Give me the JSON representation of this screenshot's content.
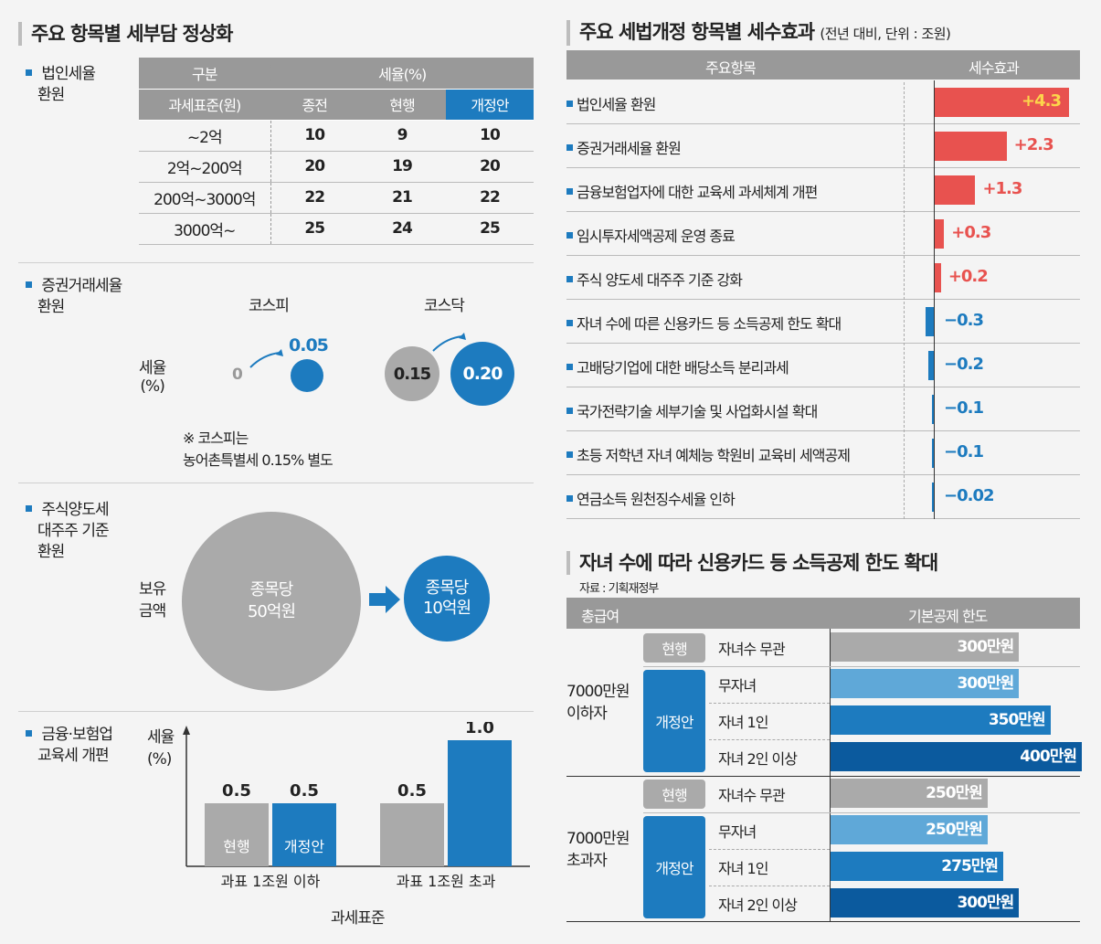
{
  "left": {
    "title": "주요 항목별 세부담 정상화",
    "corp_tax": {
      "label_line1": "법인세율",
      "label_line2": "환원",
      "header_group": "구분",
      "header_rate": "세율(%)",
      "col_base": "과세표준(원)",
      "col_before": "종전",
      "col_current": "현행",
      "col_new": "개정안",
      "rows": [
        {
          "base": "~2억",
          "before": "10",
          "current": "9",
          "new": "10"
        },
        {
          "base": "2억~200억",
          "before": "20",
          "current": "19",
          "new": "20"
        },
        {
          "base": "200억~3000억",
          "before": "22",
          "current": "21",
          "new": "22"
        },
        {
          "base": "3000억~",
          "before": "25",
          "current": "24",
          "new": "25"
        }
      ]
    },
    "sec_tax": {
      "label_line1": "증권거래세율",
      "label_line2": "환원",
      "kospi": "코스피",
      "kosdaq": "코스닥",
      "rate_line1": "세율",
      "rate_line2": "(%)",
      "kospi_from": "0",
      "kospi_to": "0.05",
      "kosdaq_from": "0.15",
      "kosdaq_to": "0.20",
      "note_line1": "※ 코스피는",
      "note_line2": "농어촌특별세 0.15% 별도"
    },
    "stock_gain": {
      "label_line1": "주식양도세",
      "label_line2": "대주주 기준",
      "label_line3": "환원",
      "hold_line1": "보유",
      "hold_line2": "금액",
      "from_line1": "종목당",
      "from_line2": "50억원",
      "to_line1": "종목당",
      "to_line2": "10억원"
    },
    "fin_ins": {
      "label_line1": "금융·보험업",
      "label_line2": "교육세 개편",
      "ylabel_line1": "세율",
      "ylabel_line2": "(%)",
      "xlabel": "과세표준",
      "current_label": "현행",
      "new_label": "개정안"
    }
  },
  "right": {
    "title": "주요 세법개정 항목별 세수효과",
    "title_note": "(전년 대비, 단위 : 조원)",
    "col_item": "주요항목",
    "col_effect": "세수효과",
    "bottom_title": "자녀 수에 따라 신용카드 등 소득공제 한도 확대",
    "source": "자료 : 기획재정부",
    "col_salary": "총급여",
    "col_limit": "기본공제 한도",
    "group1_line1": "7000만원",
    "group1_line2": "이하자",
    "group2_line1": "7000만원",
    "group2_line2": "초과자",
    "tag_current": "현행",
    "tag_new": "개정안"
  },
  "colors": {
    "blue": "#1d7bbf",
    "red": "#e8524f",
    "gray": "#aaaaaa",
    "lightblue": "#5fa8d8",
    "darkblue": "#0b5a9e"
  },
  "chart_data": [
    {
      "type": "bar",
      "title": "금융·보험업 교육세 개편",
      "ylabel": "세율(%)",
      "xlabel": "과세표준",
      "categories": [
        "과표 1조원 이하",
        "과표 1조원 초과"
      ],
      "series": [
        {
          "name": "현행",
          "values": [
            0.5,
            0.5
          ]
        },
        {
          "name": "개정안",
          "values": [
            0.5,
            1.0
          ]
        }
      ],
      "value_labels": [
        [
          "0.5",
          "0.5"
        ],
        [
          "0.5",
          "1.0"
        ]
      ],
      "ylim": [
        0,
        1.0
      ]
    },
    {
      "type": "bar",
      "title": "주요 세법개정 항목별 세수효과",
      "orientation": "horizontal",
      "categories": [
        "법인세율 환원",
        "증권거래세율 환원",
        "금융보험업자에 대한 교육세 과세체계 개편",
        "임시투자세액공제 운영 종료",
        "주식 양도세 대주주 기준 강화",
        "자녀 수에 따른 신용카드 등 소득공제 한도 확대",
        "고배당기업에 대한 배당소득 분리과세",
        "국가전략기술 세부기술 및 사업화시설 확대",
        "초등 저학년 자녀 예체능 학원비 교육비 세액공제",
        "연금소득 원천징수세율 인하"
      ],
      "values": [
        4.3,
        2.3,
        1.3,
        0.3,
        0.2,
        -0.3,
        -0.2,
        -0.1,
        -0.1,
        -0.02
      ],
      "value_labels": [
        "+4.3",
        "+2.3",
        "+1.3",
        "+0.3",
        "+0.2",
        "−0.3",
        "−0.2",
        "−0.1",
        "−0.1",
        "−0.02"
      ]
    },
    {
      "type": "bar",
      "title": "자녀 수에 따라 신용카드 등 소득공제 한도 확대",
      "orientation": "horizontal",
      "groups": [
        {
          "group": "7000만원 이하자",
          "rows": [
            {
              "tag": "현행",
              "label": "자녀수 무관",
              "value": 300,
              "text": "300만원"
            },
            {
              "tag": "개정안",
              "label": "무자녀",
              "value": 300,
              "text": "300만원"
            },
            {
              "tag": "개정안",
              "label": "자녀 1인",
              "value": 350,
              "text": "350만원"
            },
            {
              "tag": "개정안",
              "label": "자녀 2인 이상",
              "value": 400,
              "text": "400만원"
            }
          ]
        },
        {
          "group": "7000만원 초과자",
          "rows": [
            {
              "tag": "현행",
              "label": "자녀수 무관",
              "value": 250,
              "text": "250만원"
            },
            {
              "tag": "개정안",
              "label": "무자녀",
              "value": 250,
              "text": "250만원"
            },
            {
              "tag": "개정안",
              "label": "자녀 1인",
              "value": 275,
              "text": "275만원"
            },
            {
              "tag": "개정안",
              "label": "자녀 2인 이상",
              "value": 300,
              "text": "300만원"
            }
          ]
        }
      ]
    }
  ]
}
